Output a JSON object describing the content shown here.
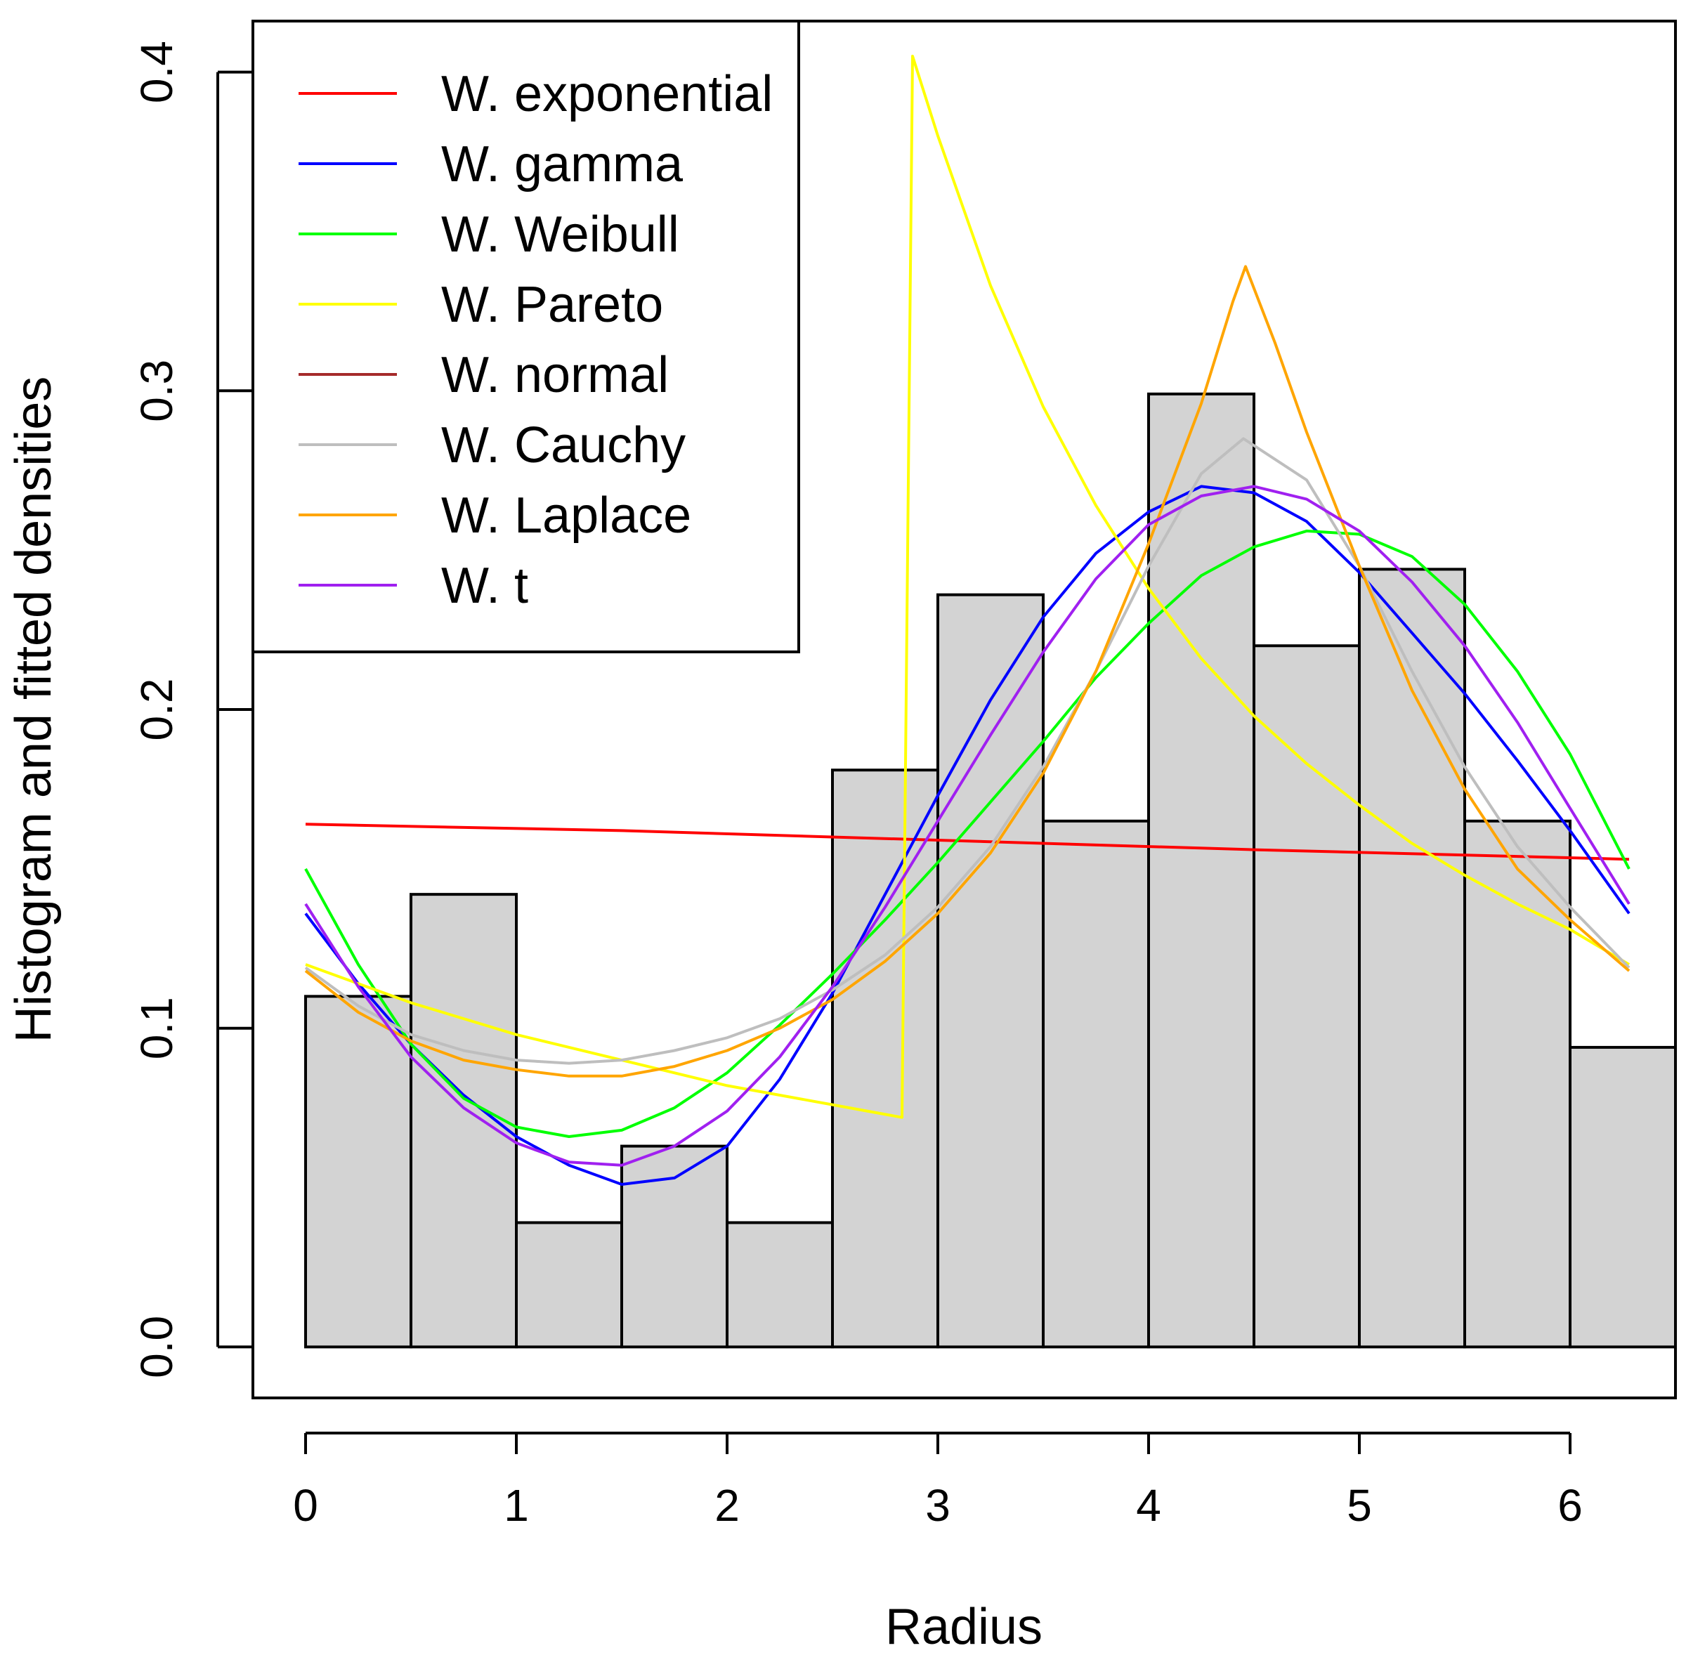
{
  "chart_data": {
    "type": "histogram",
    "title": "",
    "xlabel": "Radius",
    "ylabel": "Histogram and fitted densities",
    "xlim": [
      -0.25,
      6.5
    ],
    "ylim": [
      -0.016,
      0.416
    ],
    "x_ticks": [
      "0",
      "1",
      "2",
      "3",
      "4",
      "5",
      "6"
    ],
    "y_ticks": [
      "0.0",
      "0.1",
      "0.2",
      "0.3",
      "0.4"
    ],
    "bar_color": "#d3d3d3",
    "bins": [
      {
        "start": 0.0,
        "end": 0.5,
        "density": 0.11
      },
      {
        "start": 0.5,
        "end": 1.0,
        "density": 0.142
      },
      {
        "start": 1.0,
        "end": 1.5,
        "density": 0.039
      },
      {
        "start": 1.5,
        "end": 2.0,
        "density": 0.063
      },
      {
        "start": 2.0,
        "end": 2.5,
        "density": 0.039
      },
      {
        "start": 2.5,
        "end": 3.0,
        "density": 0.181
      },
      {
        "start": 3.0,
        "end": 3.5,
        "density": 0.236
      },
      {
        "start": 3.5,
        "end": 4.0,
        "density": 0.165
      },
      {
        "start": 4.0,
        "end": 4.5,
        "density": 0.299
      },
      {
        "start": 4.5,
        "end": 5.0,
        "density": 0.22
      },
      {
        "start": 5.0,
        "end": 5.5,
        "density": 0.244
      },
      {
        "start": 5.5,
        "end": 6.0,
        "density": 0.165
      },
      {
        "start": 6.0,
        "end": 6.5,
        "density": 0.094
      }
    ],
    "series": [
      {
        "name": "W. exponential",
        "color": "#ff0000",
        "points": [
          [
            0,
            0.164
          ],
          [
            1.5,
            0.162
          ],
          [
            3.0,
            0.159
          ],
          [
            4.5,
            0.156
          ],
          [
            6.28,
            0.153
          ]
        ]
      },
      {
        "name": "W. gamma",
        "color": "#0000ff",
        "points": [
          [
            0,
            0.136
          ],
          [
            0.25,
            0.114
          ],
          [
            0.5,
            0.095
          ],
          [
            0.75,
            0.079
          ],
          [
            1.0,
            0.066
          ],
          [
            1.25,
            0.057
          ],
          [
            1.5,
            0.051
          ],
          [
            1.75,
            0.053
          ],
          [
            2.0,
            0.063
          ],
          [
            2.25,
            0.084
          ],
          [
            2.5,
            0.111
          ],
          [
            2.75,
            0.142
          ],
          [
            3.0,
            0.173
          ],
          [
            3.25,
            0.203
          ],
          [
            3.5,
            0.229
          ],
          [
            3.75,
            0.249
          ],
          [
            4.0,
            0.262
          ],
          [
            4.25,
            0.27
          ],
          [
            4.5,
            0.268
          ],
          [
            4.75,
            0.259
          ],
          [
            5.0,
            0.243
          ],
          [
            5.25,
            0.224
          ],
          [
            5.5,
            0.205
          ],
          [
            5.75,
            0.184
          ],
          [
            6.0,
            0.162
          ],
          [
            6.28,
            0.136
          ]
        ]
      },
      {
        "name": "W. Weibull",
        "color": "#00ff00",
        "points": [
          [
            0,
            0.15
          ],
          [
            0.25,
            0.12
          ],
          [
            0.5,
            0.095
          ],
          [
            0.75,
            0.078
          ],
          [
            1.0,
            0.069
          ],
          [
            1.25,
            0.066
          ],
          [
            1.5,
            0.068
          ],
          [
            1.75,
            0.075
          ],
          [
            2.0,
            0.086
          ],
          [
            2.25,
            0.101
          ],
          [
            2.5,
            0.117
          ],
          [
            2.75,
            0.134
          ],
          [
            3.0,
            0.152
          ],
          [
            3.25,
            0.171
          ],
          [
            3.5,
            0.19
          ],
          [
            3.75,
            0.21
          ],
          [
            4.0,
            0.227
          ],
          [
            4.25,
            0.242
          ],
          [
            4.5,
            0.251
          ],
          [
            4.75,
            0.256
          ],
          [
            5.0,
            0.255
          ],
          [
            5.25,
            0.248
          ],
          [
            5.5,
            0.233
          ],
          [
            5.75,
            0.212
          ],
          [
            6.0,
            0.186
          ],
          [
            6.28,
            0.15
          ]
        ]
      },
      {
        "name": "W. Pareto",
        "color": "#ffff00",
        "points": [
          [
            0,
            0.12
          ],
          [
            0.5,
            0.108
          ],
          [
            1.0,
            0.098
          ],
          [
            1.5,
            0.09
          ],
          [
            2.0,
            0.082
          ],
          [
            2.5,
            0.076
          ],
          [
            2.83,
            0.072
          ],
          [
            2.88,
            0.405
          ],
          [
            3.0,
            0.38
          ],
          [
            3.25,
            0.333
          ],
          [
            3.5,
            0.295
          ],
          [
            3.75,
            0.264
          ],
          [
            4.0,
            0.238
          ],
          [
            4.25,
            0.216
          ],
          [
            4.5,
            0.198
          ],
          [
            4.75,
            0.183
          ],
          [
            5.0,
            0.17
          ],
          [
            5.25,
            0.158
          ],
          [
            5.5,
            0.148
          ],
          [
            5.75,
            0.139
          ],
          [
            6.0,
            0.131
          ],
          [
            6.28,
            0.12
          ]
        ]
      },
      {
        "name": "W. normal",
        "color": "#a52a2a",
        "points": []
      },
      {
        "name": "W. Cauchy",
        "color": "#bebebe",
        "points": [
          [
            0,
            0.119
          ],
          [
            0.25,
            0.107
          ],
          [
            0.5,
            0.098
          ],
          [
            0.75,
            0.093
          ],
          [
            1.0,
            0.09
          ],
          [
            1.25,
            0.089
          ],
          [
            1.5,
            0.09
          ],
          [
            1.75,
            0.093
          ],
          [
            2.0,
            0.097
          ],
          [
            2.25,
            0.103
          ],
          [
            2.5,
            0.112
          ],
          [
            2.75,
            0.123
          ],
          [
            3.0,
            0.138
          ],
          [
            3.25,
            0.157
          ],
          [
            3.5,
            0.182
          ],
          [
            3.75,
            0.212
          ],
          [
            4.0,
            0.245
          ],
          [
            4.25,
            0.274
          ],
          [
            4.45,
            0.285
          ],
          [
            4.75,
            0.272
          ],
          [
            5.0,
            0.245
          ],
          [
            5.25,
            0.212
          ],
          [
            5.5,
            0.182
          ],
          [
            5.75,
            0.157
          ],
          [
            6.0,
            0.138
          ],
          [
            6.28,
            0.119
          ]
        ]
      },
      {
        "name": "W. Laplace",
        "color": "#ffa500",
        "points": [
          [
            0,
            0.118
          ],
          [
            0.25,
            0.105
          ],
          [
            0.5,
            0.096
          ],
          [
            0.75,
            0.09
          ],
          [
            1.0,
            0.087
          ],
          [
            1.25,
            0.085
          ],
          [
            1.5,
            0.085
          ],
          [
            1.75,
            0.088
          ],
          [
            2.0,
            0.093
          ],
          [
            2.25,
            0.1
          ],
          [
            2.5,
            0.109
          ],
          [
            2.75,
            0.121
          ],
          [
            3.0,
            0.136
          ],
          [
            3.25,
            0.155
          ],
          [
            3.5,
            0.18
          ],
          [
            3.75,
            0.212
          ],
          [
            4.0,
            0.252
          ],
          [
            4.25,
            0.296
          ],
          [
            4.4,
            0.328
          ],
          [
            4.46,
            0.339
          ],
          [
            4.6,
            0.315
          ],
          [
            4.75,
            0.287
          ],
          [
            5.0,
            0.245
          ],
          [
            5.25,
            0.206
          ],
          [
            5.5,
            0.175
          ],
          [
            5.75,
            0.15
          ],
          [
            6.0,
            0.134
          ],
          [
            6.28,
            0.118
          ]
        ]
      },
      {
        "name": "W. t",
        "color": "#a020f0",
        "points": [
          [
            0,
            0.139
          ],
          [
            0.25,
            0.113
          ],
          [
            0.5,
            0.091
          ],
          [
            0.75,
            0.075
          ],
          [
            1.0,
            0.064
          ],
          [
            1.25,
            0.058
          ],
          [
            1.5,
            0.057
          ],
          [
            1.75,
            0.063
          ],
          [
            2.0,
            0.074
          ],
          [
            2.25,
            0.091
          ],
          [
            2.5,
            0.113
          ],
          [
            2.75,
            0.138
          ],
          [
            3.0,
            0.165
          ],
          [
            3.25,
            0.192
          ],
          [
            3.5,
            0.218
          ],
          [
            3.75,
            0.241
          ],
          [
            4.0,
            0.258
          ],
          [
            4.25,
            0.267
          ],
          [
            4.5,
            0.27
          ],
          [
            4.75,
            0.266
          ],
          [
            5.0,
            0.256
          ],
          [
            5.25,
            0.24
          ],
          [
            5.5,
            0.22
          ],
          [
            5.75,
            0.196
          ],
          [
            6.0,
            0.169
          ],
          [
            6.28,
            0.139
          ]
        ]
      }
    ]
  }
}
